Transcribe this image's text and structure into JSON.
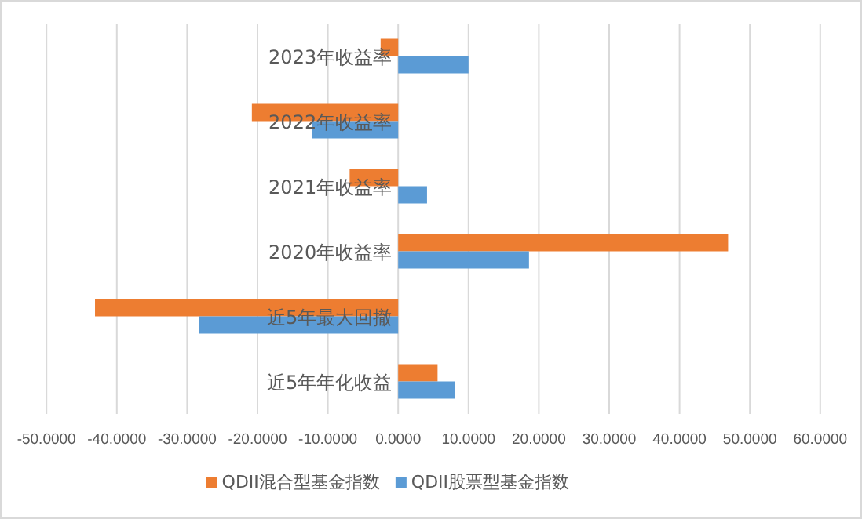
{
  "chart_data": {
    "type": "bar",
    "orientation": "horizontal",
    "categories": [
      "2023年收益率",
      "2022年收益率",
      "2021年收益率",
      "2020年收益率",
      "近5年最大回撤",
      "近5年年化收益"
    ],
    "series": [
      {
        "name": "QDII混合型基金指数",
        "color": "#ed7d31",
        "values": [
          -2.5,
          -20.8,
          -6.9,
          46.9,
          -43.1,
          5.6
        ]
      },
      {
        "name": "QDII股票型基金指数",
        "color": "#5b9bd5",
        "values": [
          10.0,
          -12.3,
          4.1,
          18.6,
          -28.3,
          8.1
        ]
      }
    ],
    "xlim": [
      -50,
      60
    ],
    "xticks": [
      {
        "value": -50,
        "label": "-50.0000"
      },
      {
        "value": -40,
        "label": "-40.0000"
      },
      {
        "value": -30,
        "label": "-30.0000"
      },
      {
        "value": -20,
        "label": "-20.0000"
      },
      {
        "value": -10,
        "label": "-10.0000"
      },
      {
        "value": 0,
        "label": "0.0000"
      },
      {
        "value": 10,
        "label": "10.0000"
      },
      {
        "value": 20,
        "label": "20.0000"
      },
      {
        "value": 30,
        "label": "30.0000"
      },
      {
        "value": 40,
        "label": "40.0000"
      },
      {
        "value": 50,
        "label": "50.0000"
      },
      {
        "value": 60,
        "label": "60.0000"
      }
    ],
    "grid": "x",
    "legend": "bottom"
  }
}
